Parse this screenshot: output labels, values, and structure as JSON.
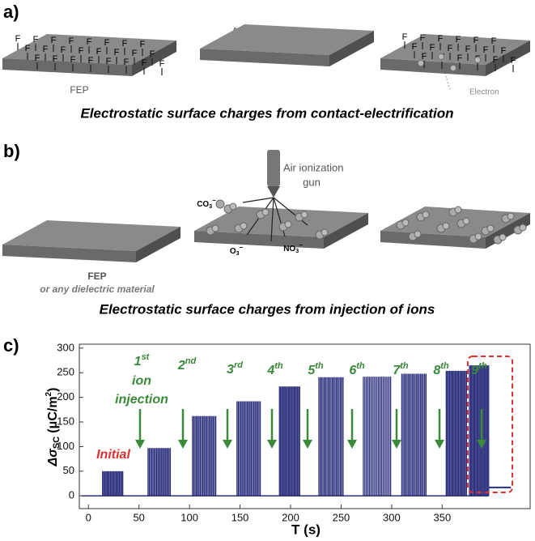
{
  "panel_a": {
    "label": "a)",
    "fluorine_symbol": "F",
    "fep_label": "FEP",
    "al_label": "Al",
    "electron_label": "Electron",
    "caption": "Electrostatic surface charges from contact-electrification"
  },
  "panel_b": {
    "label": "b)",
    "gun_label_line1": "Air ionization",
    "gun_label_line2": "gun",
    "ions": [
      {
        "base": "CO",
        "sub": "3",
        "charge": "−"
      },
      {
        "base": "O",
        "sub": "3",
        "charge": "−"
      },
      {
        "base": "NO",
        "sub": "3",
        "charge": "−"
      }
    ],
    "fep_label": "FEP",
    "fep_note": "or any dielectric material",
    "caption": "Electrostatic surface charges from injection of ions"
  },
  "panel_c": {
    "label": "c)",
    "chart_data": {
      "type": "pulse",
      "x_label": "T (s)",
      "y_label": {
        "symbol": "Δσ",
        "subscript": "SC",
        "unit": "(μC/m",
        "unit_power": "2",
        "close": ")"
      },
      "color": "#2b2f7c",
      "xlim": [
        -9,
        437
      ],
      "ylim": [
        -26,
        308
      ],
      "xticks": [
        0,
        50,
        100,
        150,
        200,
        250,
        300,
        350
      ],
      "yticks": [
        0,
        50,
        100,
        150,
        200,
        250,
        300
      ],
      "baseline": 0,
      "bursts": [
        {
          "start": 14,
          "end": 34,
          "peak": 50
        },
        {
          "start": 59,
          "end": 81,
          "peak": 97
        },
        {
          "start": 103,
          "end": 126,
          "peak": 162
        },
        {
          "start": 147,
          "end": 170,
          "peak": 192
        },
        {
          "start": 189,
          "end": 209,
          "peak": 222
        },
        {
          "start": 228,
          "end": 252,
          "peak": 241
        },
        {
          "start": 272,
          "end": 299,
          "peak": 242
        },
        {
          "start": 310,
          "end": 334,
          "peak": 248
        },
        {
          "start": 354,
          "end": 374,
          "peak": 254
        },
        {
          "start": 377,
          "end": 396,
          "peak": 265
        }
      ],
      "tail": {
        "start": 396,
        "end": 418,
        "level": 17
      },
      "annotations": [
        {
          "text": "Initial"
        },
        {
          "number": "1",
          "suffix": "st",
          "line2": "ion",
          "line3": "injection"
        },
        {
          "number": "2",
          "suffix": "nd"
        },
        {
          "number": "3",
          "suffix": "rd"
        },
        {
          "number": "4",
          "suffix": "th"
        },
        {
          "number": "5",
          "suffix": "th"
        },
        {
          "number": "6",
          "suffix": "th"
        },
        {
          "number": "7",
          "suffix": "th"
        },
        {
          "number": "8",
          "suffix": "th"
        },
        {
          "number": "9",
          "suffix": "th"
        }
      ]
    }
  }
}
